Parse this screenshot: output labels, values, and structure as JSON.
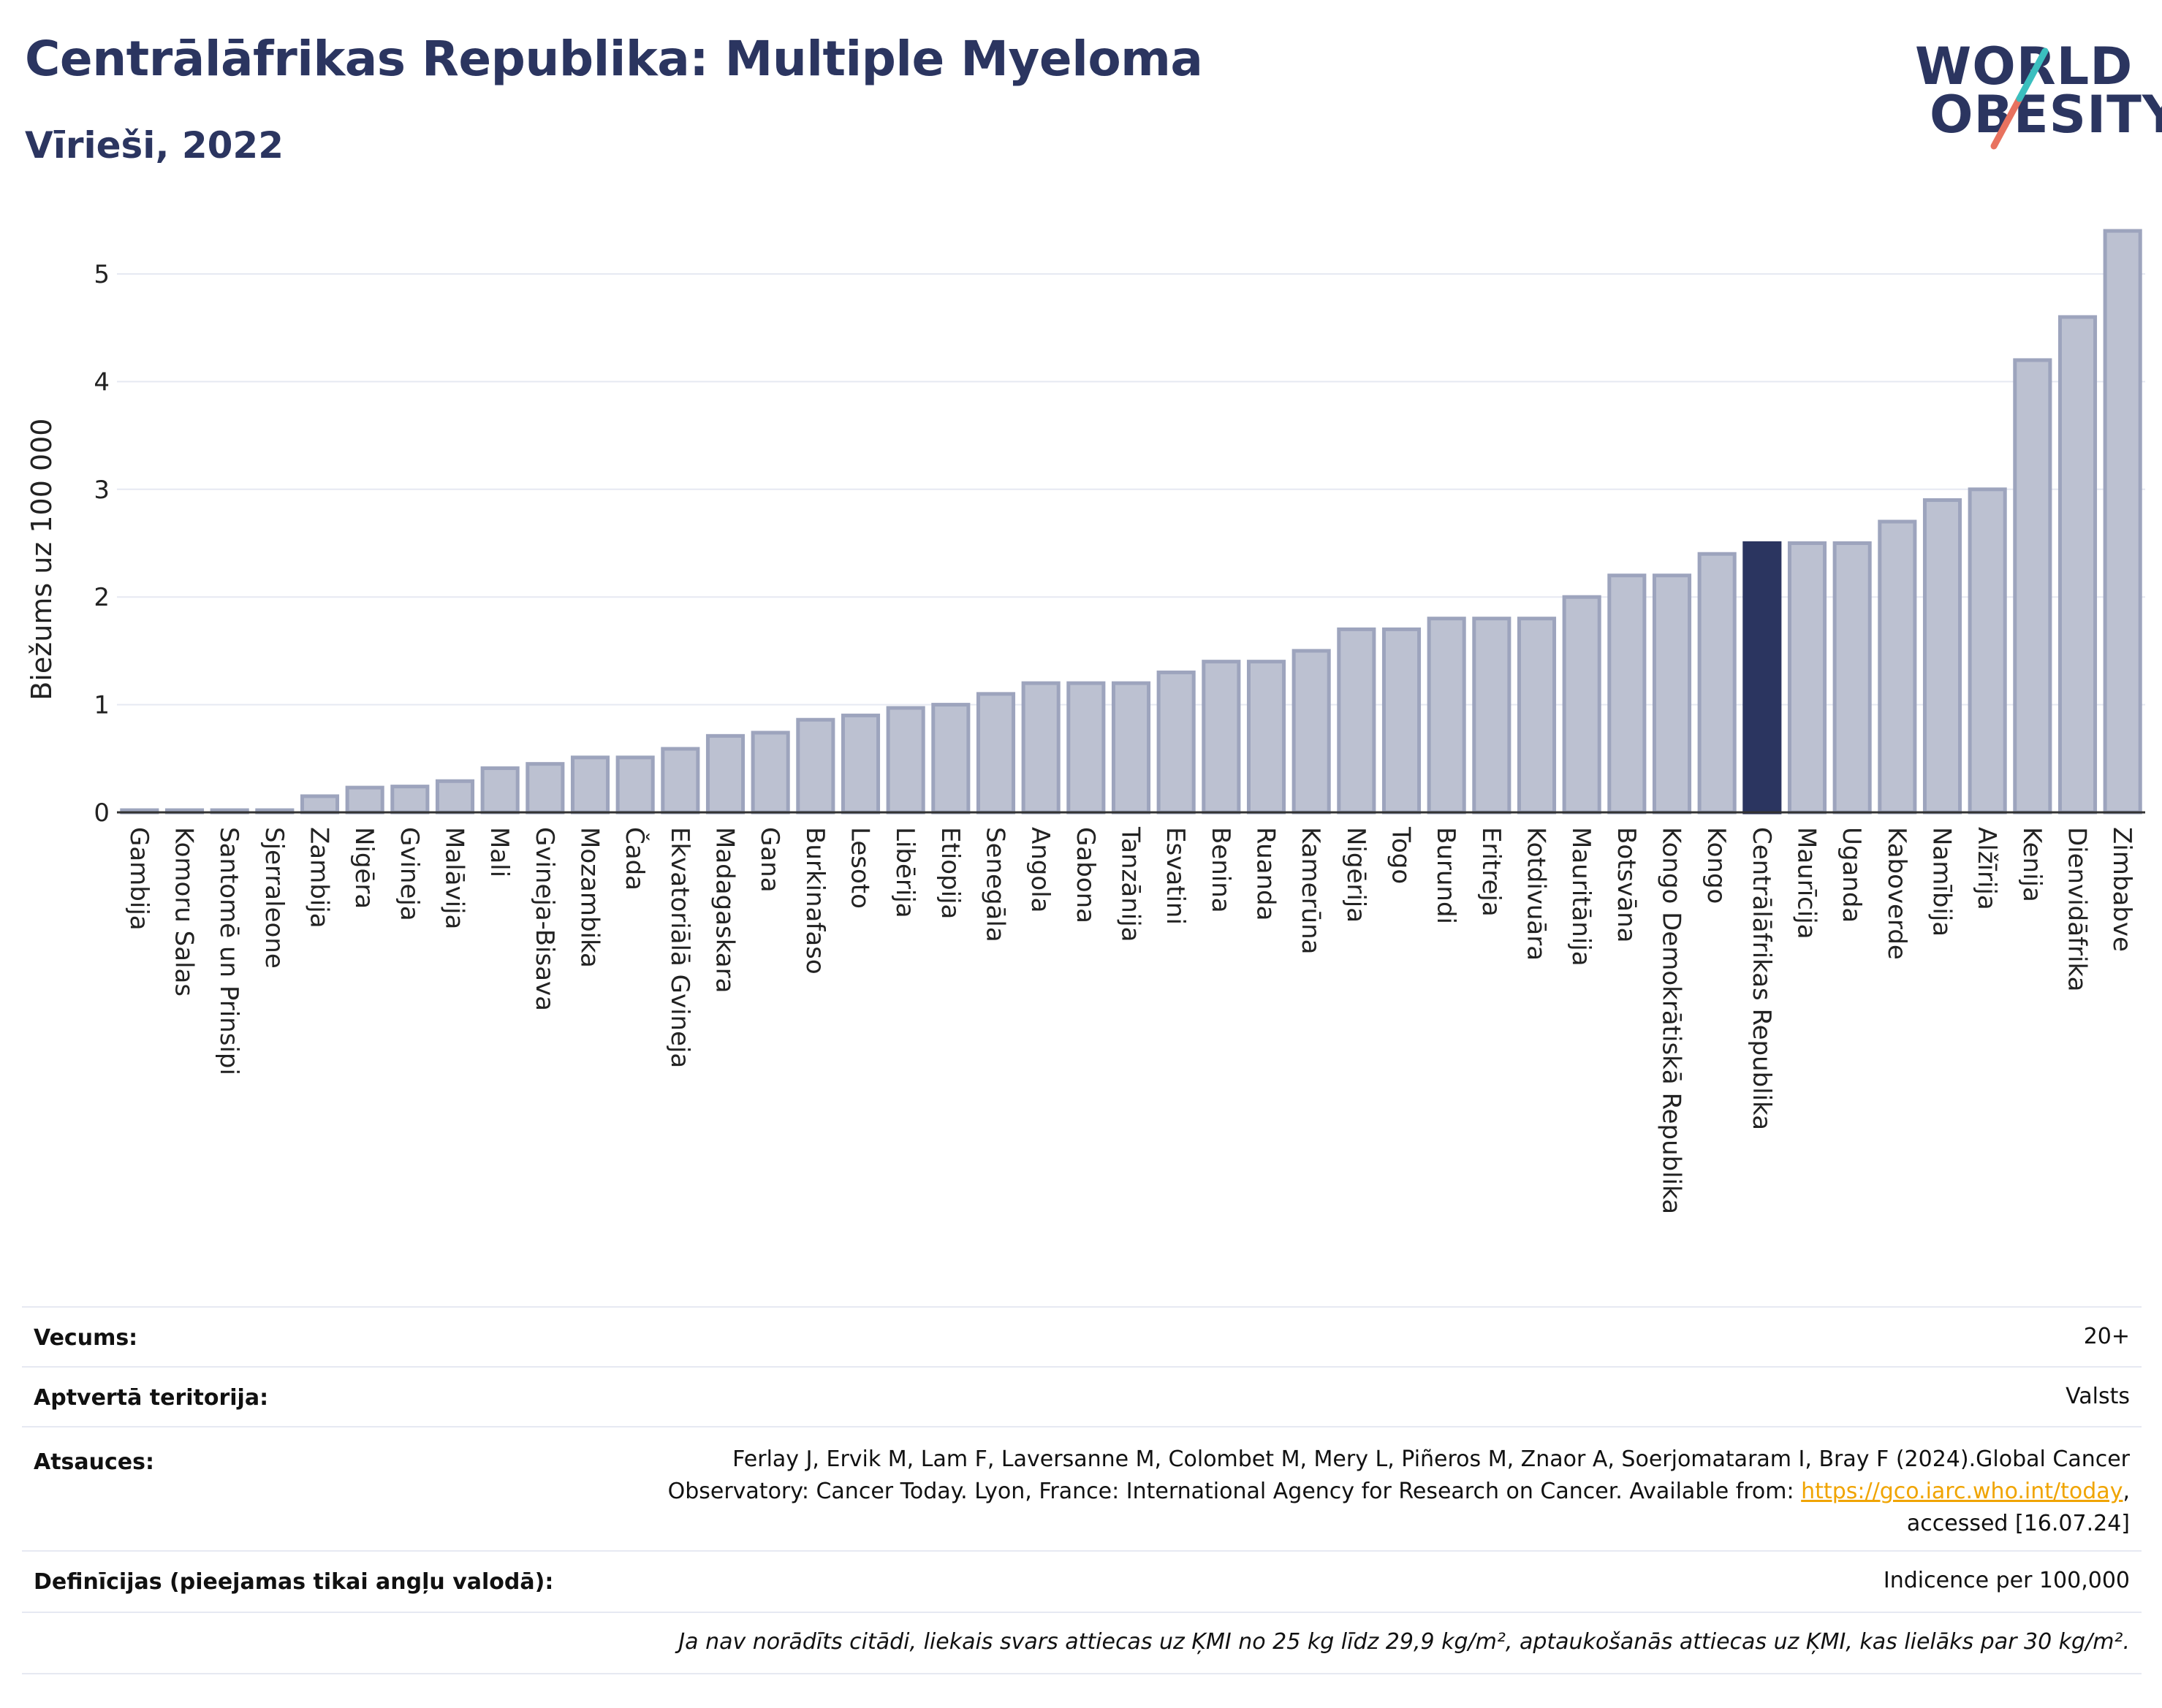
{
  "header": {
    "title": "Centrālāfrikas Republika: Multiple Myeloma",
    "subtitle": "Vīrieši, 2022",
    "logo_line1": "WORLD",
    "logo_line2": "OBESITY"
  },
  "colors": {
    "bar": "#bcc1d1",
    "bar_border": "#9da4bd",
    "highlight": "#2b3560",
    "title": "#2b3560",
    "logo_slash_teal": "#3bbfbf",
    "logo_slash_red": "#e8725f",
    "link": "#f0a400"
  },
  "chart_data": {
    "type": "bar",
    "ylabel": "Biežums uz 100 000",
    "xlabel": "",
    "ylim": [
      0,
      5.5
    ],
    "yticks": [
      0,
      1,
      2,
      3,
      4,
      5
    ],
    "grid": true,
    "highlight_category": "Centrālāfrikas Republika",
    "categories": [
      "Gambija",
      "Komoru Salas",
      "Santomē un Prinsipi",
      "Sjerraleone",
      "Zambija",
      "Nigēra",
      "Gvineja",
      "Malāvija",
      "Mali",
      "Gvineja-Bisava",
      "Mozambika",
      "Čada",
      "Ekvatoriālā Gvineja",
      "Madagaskara",
      "Gana",
      "Burkinafaso",
      "Lesoto",
      "Libērija",
      "Etiopija",
      "Senegāla",
      "Angola",
      "Gabona",
      "Tanzānija",
      "Esvatini",
      "Benina",
      "Ruanda",
      "Kamerūna",
      "Nigērija",
      "Togo",
      "Burundi",
      "Eritreja",
      "Kotdivuāra",
      "Mauritānija",
      "Botsvāna",
      "Kongo Demokrātiskā Republika",
      "Kongo",
      "Centrālāfrikas Republika",
      "Maurīcija",
      "Uganda",
      "Kaboverde",
      "Namībija",
      "Alžīrija",
      "Kenija",
      "Dienvidāfrika",
      "Zimbabve"
    ],
    "values": [
      0.02,
      0.02,
      0.02,
      0.02,
      0.15,
      0.23,
      0.24,
      0.29,
      0.41,
      0.45,
      0.51,
      0.51,
      0.59,
      0.71,
      0.74,
      0.86,
      0.9,
      0.97,
      1.0,
      1.1,
      1.2,
      1.2,
      1.2,
      1.3,
      1.4,
      1.4,
      1.5,
      1.7,
      1.7,
      1.8,
      1.8,
      1.8,
      2.0,
      2.2,
      2.2,
      2.4,
      2.5,
      2.5,
      2.5,
      2.7,
      2.9,
      3.0,
      4.2,
      4.6,
      5.4
    ]
  },
  "info": {
    "age_label": "Vecums:",
    "age_value": "20+",
    "territory_label": "Aptvertā teritorija:",
    "territory_value": "Valsts",
    "refs_label": "Atsauces:",
    "refs_line1": "Ferlay J, Ervik M, Lam F, Laversanne M, Colombet M, Mery L, Piñeros M, Znaor A, Soerjomataram I, Bray F (2024).Global Cancer",
    "refs_line2": "Observatory: Cancer Today. Lyon, France: International Agency for Research on Cancer. Available from: ",
    "refs_link": "https://gco.iarc.who.int/today",
    "refs_line2_end": ",",
    "refs_line3": "accessed [16.07.24]",
    "def_label": "Definīcijas (pieejamas tikai angļu valodā):",
    "def_value": "Indicence per 100,000",
    "note": "Ja nav norādīts citādi, liekais svars attiecas uz ĶMI no 25 kg līdz 29,9 kg/m², aptaukošanās attiecas uz ĶMI, kas lielāks par 30 kg/m²."
  }
}
